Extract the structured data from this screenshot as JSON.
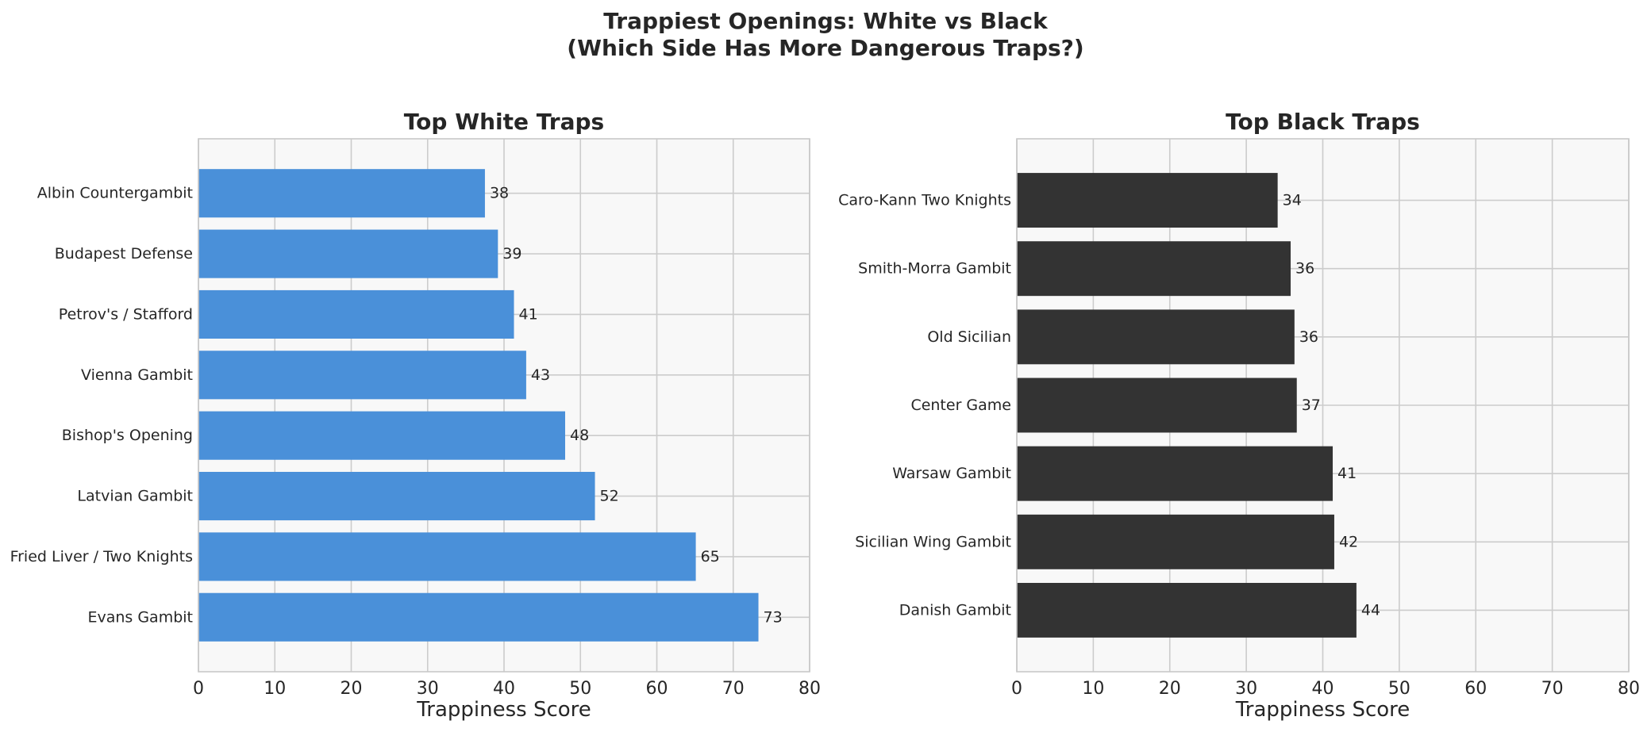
{
  "suptitle": {
    "line1": "Trappiest Openings: White vs Black",
    "line2": "(Which Side Has More Dangerous Traps?)"
  },
  "chart_data": [
    {
      "type": "bar",
      "orientation": "horizontal",
      "title": "Top White Traps",
      "xlabel": "Trappiness Score",
      "ylabel": "",
      "xlim": [
        0,
        80
      ],
      "xticks": [
        0,
        10,
        20,
        30,
        40,
        50,
        60,
        70,
        80
      ],
      "grid": true,
      "bar_color": "#4a90d9",
      "categories": [
        "Albin Countergambit",
        "Budapest Defense",
        "Petrov's / Stafford",
        "Vienna Gambit",
        "Bishop's Opening",
        "Latvian Gambit",
        "Fried Liver / Two Knights",
        "Evans Gambit"
      ],
      "values": [
        37.5,
        39.2,
        41.3,
        42.9,
        48.0,
        51.9,
        65.1,
        73.3
      ],
      "value_labels": [
        "38",
        "39",
        "41",
        "43",
        "48",
        "52",
        "65",
        "73"
      ]
    },
    {
      "type": "bar",
      "orientation": "horizontal",
      "title": "Top Black Traps",
      "xlabel": "Trappiness Score",
      "ylabel": "",
      "xlim": [
        0,
        80
      ],
      "xticks": [
        0,
        10,
        20,
        30,
        40,
        50,
        60,
        70,
        80
      ],
      "grid": true,
      "bar_color": "#333333",
      "categories": [
        "Caro-Kann Two Knights",
        "Smith-Morra Gambit",
        "Old Sicilian",
        "Center Game",
        "Warsaw Gambit",
        "Sicilian Wing Gambit",
        "Danish Gambit"
      ],
      "values": [
        34.1,
        35.8,
        36.3,
        36.6,
        41.3,
        41.5,
        44.4
      ],
      "value_labels": [
        "34",
        "36",
        "36",
        "37",
        "41",
        "42",
        "44"
      ]
    }
  ]
}
